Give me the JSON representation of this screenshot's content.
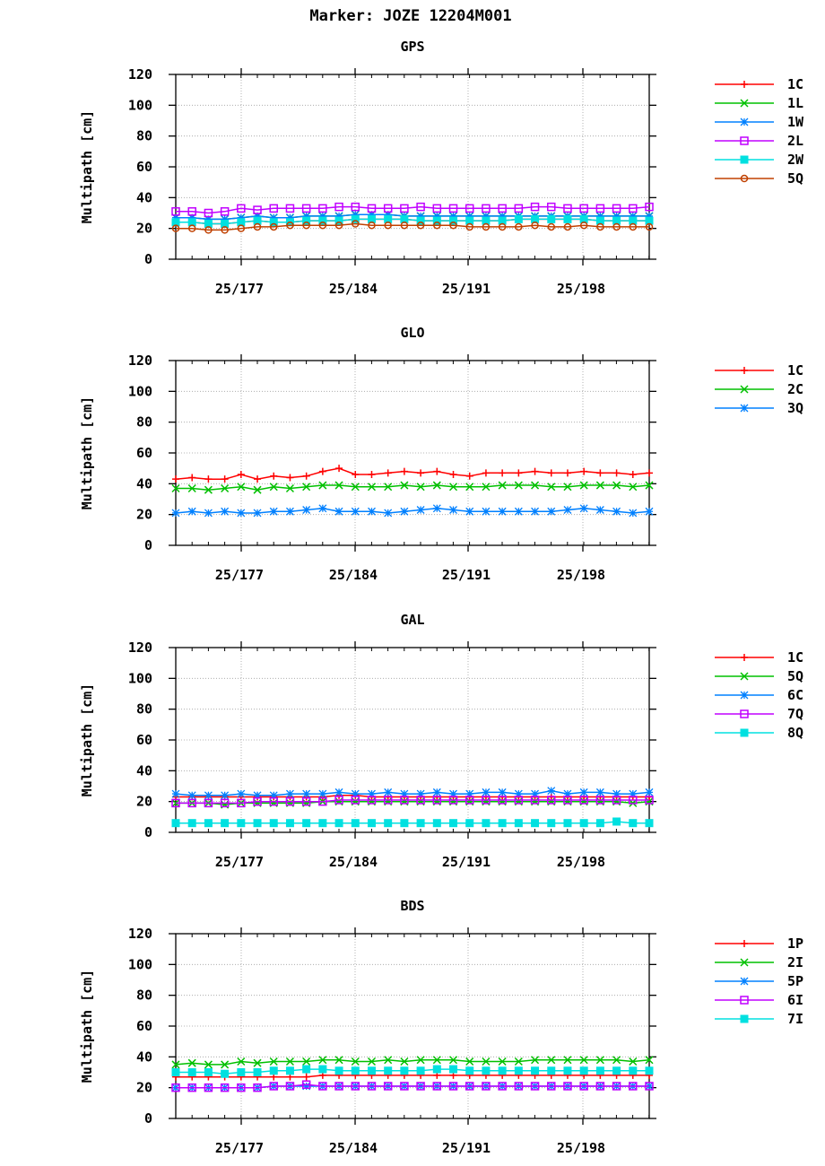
{
  "title": "Marker: JOZE 12204M001",
  "chart_data": [
    {
      "type": "line",
      "title": "GPS",
      "ylabel": "Multipath [cm]",
      "ylim": [
        0,
        120
      ],
      "yticks": [
        0,
        20,
        40,
        60,
        80,
        100,
        120
      ],
      "x_tick_labels": [
        "25/177",
        "25/184",
        "25/191",
        "25/198"
      ],
      "legend_position": "right",
      "series": [
        {
          "name": "1C",
          "color": "#ff0000",
          "marker": "plus",
          "values": [
            24,
            24,
            23,
            23,
            24,
            25,
            24,
            24,
            25,
            25,
            25,
            26,
            26,
            26,
            26,
            25,
            25,
            25,
            25,
            25,
            25,
            26,
            26,
            26,
            26,
            26,
            25,
            25,
            25,
            25
          ]
        },
        {
          "name": "1L",
          "color": "#00c000",
          "marker": "x",
          "values": [
            27,
            27,
            26,
            26,
            27,
            28,
            27,
            27,
            28,
            28,
            28,
            29,
            29,
            29,
            28,
            28,
            28,
            28,
            28,
            28,
            28,
            28,
            28,
            28,
            28,
            28,
            28,
            28,
            28,
            28
          ]
        },
        {
          "name": "1W",
          "color": "#0080ff",
          "marker": "star",
          "values": [
            27,
            27,
            26,
            26,
            27,
            28,
            27,
            27,
            28,
            28,
            28,
            29,
            29,
            29,
            28,
            28,
            28,
            28,
            28,
            28,
            28,
            28,
            28,
            28,
            28,
            28,
            28,
            28,
            28,
            28
          ]
        },
        {
          "name": "2L",
          "color": "#c000ff",
          "marker": "square",
          "values": [
            31,
            31,
            30,
            31,
            33,
            32,
            33,
            33,
            33,
            33,
            34,
            34,
            33,
            33,
            33,
            34,
            33,
            33,
            33,
            33,
            33,
            33,
            34,
            34,
            33,
            33,
            33,
            33,
            33,
            34
          ]
        },
        {
          "name": "2W",
          "color": "#00e0e0",
          "marker": "filled-square",
          "values": [
            24,
            24,
            23,
            23,
            24,
            25,
            24,
            24,
            25,
            25,
            25,
            26,
            26,
            26,
            26,
            25,
            25,
            25,
            25,
            25,
            25,
            26,
            26,
            26,
            26,
            26,
            25,
            25,
            25,
            25
          ]
        },
        {
          "name": "5Q",
          "color": "#c04000",
          "marker": "circle",
          "values": [
            20,
            20,
            19,
            19,
            20,
            21,
            21,
            22,
            22,
            22,
            22,
            23,
            22,
            22,
            22,
            22,
            22,
            22,
            21,
            21,
            21,
            21,
            22,
            21,
            21,
            22,
            21,
            21,
            21,
            21
          ]
        }
      ]
    },
    {
      "type": "line",
      "title": "GLO",
      "ylabel": "Multipath [cm]",
      "ylim": [
        0,
        120
      ],
      "yticks": [
        0,
        20,
        40,
        60,
        80,
        100,
        120
      ],
      "x_tick_labels": [
        "25/177",
        "25/184",
        "25/191",
        "25/198"
      ],
      "legend_position": "right",
      "series": [
        {
          "name": "1C",
          "color": "#ff0000",
          "marker": "plus",
          "values": [
            43,
            44,
            43,
            43,
            46,
            43,
            45,
            44,
            45,
            48,
            50,
            46,
            46,
            47,
            48,
            47,
            48,
            46,
            45,
            47,
            47,
            47,
            48,
            47,
            47,
            48,
            47,
            47,
            46,
            47
          ]
        },
        {
          "name": "2C",
          "color": "#00c000",
          "marker": "x",
          "values": [
            37,
            37,
            36,
            37,
            38,
            36,
            38,
            37,
            38,
            39,
            39,
            38,
            38,
            38,
            39,
            38,
            39,
            38,
            38,
            38,
            39,
            39,
            39,
            38,
            38,
            39,
            39,
            39,
            38,
            39
          ]
        },
        {
          "name": "3Q",
          "color": "#0080ff",
          "marker": "star",
          "values": [
            21,
            22,
            21,
            22,
            21,
            21,
            22,
            22,
            23,
            24,
            22,
            22,
            22,
            21,
            22,
            23,
            24,
            23,
            22,
            22,
            22,
            22,
            22,
            22,
            23,
            24,
            23,
            22,
            21,
            22
          ]
        }
      ]
    },
    {
      "type": "line",
      "title": "GAL",
      "ylabel": "Multipath [cm]",
      "ylim": [
        0,
        120
      ],
      "yticks": [
        0,
        20,
        40,
        60,
        80,
        100,
        120
      ],
      "x_tick_labels": [
        "25/177",
        "25/184",
        "25/191",
        "25/198"
      ],
      "legend_position": "right",
      "series": [
        {
          "name": "1C",
          "color": "#ff0000",
          "marker": "plus",
          "values": [
            23,
            23,
            23,
            23,
            23,
            23,
            23,
            23,
            23,
            23,
            24,
            24,
            23,
            23,
            23,
            23,
            23,
            23,
            23,
            23,
            23,
            23,
            23,
            23,
            23,
            23,
            23,
            23,
            23,
            23
          ]
        },
        {
          "name": "5Q",
          "color": "#00c000",
          "marker": "x",
          "values": [
            19,
            19,
            19,
            18,
            19,
            19,
            19,
            19,
            19,
            20,
            20,
            20,
            20,
            20,
            20,
            20,
            20,
            20,
            20,
            20,
            20,
            20,
            20,
            20,
            20,
            20,
            20,
            20,
            19,
            20
          ]
        },
        {
          "name": "6C",
          "color": "#0080ff",
          "marker": "star",
          "values": [
            25,
            24,
            24,
            24,
            25,
            24,
            24,
            25,
            25,
            25,
            26,
            25,
            25,
            26,
            25,
            25,
            26,
            25,
            25,
            26,
            26,
            25,
            25,
            27,
            25,
            26,
            26,
            25,
            25,
            26
          ]
        },
        {
          "name": "7Q",
          "color": "#c000ff",
          "marker": "square",
          "values": [
            19,
            19,
            19,
            19,
            19,
            20,
            20,
            20,
            20,
            20,
            21,
            21,
            21,
            21,
            21,
            21,
            21,
            21,
            21,
            21,
            21,
            21,
            21,
            21,
            21,
            21,
            21,
            21,
            21,
            21
          ]
        },
        {
          "name": "8Q",
          "color": "#00e0e0",
          "marker": "filled-square",
          "values": [
            6,
            6,
            6,
            6,
            6,
            6,
            6,
            6,
            6,
            6,
            6,
            6,
            6,
            6,
            6,
            6,
            6,
            6,
            6,
            6,
            6,
            6,
            6,
            6,
            6,
            6,
            6,
            7,
            6,
            6
          ]
        }
      ]
    },
    {
      "type": "line",
      "title": "BDS",
      "ylabel": "Multipath [cm]",
      "ylim": [
        0,
        120
      ],
      "yticks": [
        0,
        20,
        40,
        60,
        80,
        100,
        120
      ],
      "x_tick_labels": [
        "25/177",
        "25/184",
        "25/191",
        "25/198"
      ],
      "legend_position": "right",
      "series": [
        {
          "name": "1P",
          "color": "#ff0000",
          "marker": "plus",
          "values": [
            27,
            27,
            27,
            27,
            27,
            27,
            27,
            27,
            27,
            28,
            28,
            28,
            28,
            28,
            28,
            28,
            28,
            28,
            28,
            28,
            28,
            28,
            28,
            28,
            28,
            28,
            28,
            28,
            28,
            28
          ]
        },
        {
          "name": "2I",
          "color": "#00c000",
          "marker": "x",
          "values": [
            35,
            36,
            35,
            35,
            37,
            36,
            37,
            37,
            37,
            38,
            38,
            37,
            37,
            38,
            37,
            38,
            38,
            38,
            37,
            37,
            37,
            37,
            38,
            38,
            38,
            38,
            38,
            38,
            37,
            38
          ]
        },
        {
          "name": "5P",
          "color": "#0080ff",
          "marker": "star",
          "values": [
            20,
            20,
            20,
            20,
            20,
            20,
            21,
            21,
            21,
            21,
            21,
            21,
            21,
            21,
            21,
            21,
            21,
            21,
            21,
            21,
            21,
            21,
            21,
            21,
            21,
            21,
            21,
            21,
            21,
            21
          ]
        },
        {
          "name": "6I",
          "color": "#c000ff",
          "marker": "square",
          "values": [
            20,
            20,
            20,
            20,
            20,
            20,
            21,
            21,
            22,
            21,
            21,
            21,
            21,
            21,
            21,
            21,
            21,
            21,
            21,
            21,
            21,
            21,
            21,
            21,
            21,
            21,
            21,
            21,
            21,
            21
          ]
        },
        {
          "name": "7I",
          "color": "#00e0e0",
          "marker": "filled-square",
          "values": [
            30,
            30,
            30,
            29,
            30,
            30,
            31,
            31,
            32,
            32,
            31,
            31,
            31,
            31,
            31,
            31,
            32,
            32,
            31,
            31,
            31,
            31,
            31,
            31,
            31,
            31,
            31,
            31,
            31,
            31
          ]
        }
      ]
    }
  ]
}
